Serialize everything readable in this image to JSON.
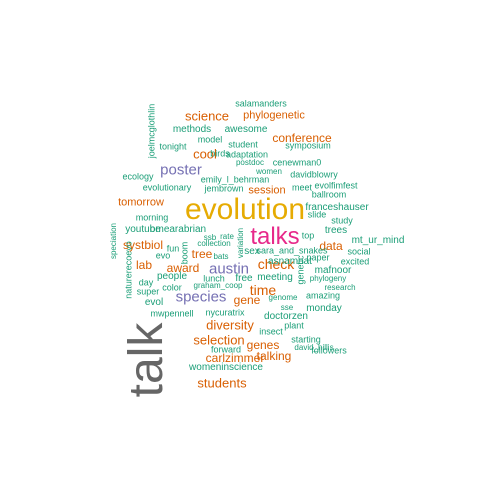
{
  "wordcloud": {
    "colors": {
      "gray": "#666666",
      "orange": "#D95F02",
      "teal": "#1B9E77",
      "purple": "#7570B3",
      "magenta": "#E7298A",
      "gold": "#E6AB02"
    },
    "words": [
      "talk",
      "evolution",
      "talks",
      "austin",
      "species",
      "poster",
      "time",
      "check",
      "science",
      "conference",
      "cool",
      "session",
      "gene",
      "selection",
      "diversity",
      "genes",
      "talking",
      "students",
      "data",
      "award",
      "tree",
      "systbiol",
      "tomorrow",
      "phylogenetic",
      "carlzimmer",
      "lab",
      "salamanders",
      "awesome",
      "methods",
      "model",
      "student",
      "symposium",
      "tonight",
      "birds",
      "adaptation",
      "cenewman0",
      "davidblowry",
      "emily_l_behrman",
      "ecology",
      "evolutionary",
      "jembrown",
      "meet",
      "evolfimfest",
      "ballroom",
      "franceshauser",
      "trees",
      "mt_ur_mind",
      "morning",
      "slide",
      "study",
      "omearabrian",
      "youtube",
      "ssb",
      "rate",
      "collection",
      "variation",
      "top",
      "social",
      "excited",
      "sara_and_snakes",
      "day",
      "people",
      "lunch",
      "free",
      "meeting",
      "sex",
      "asnamnat",
      "mafnoor",
      "research",
      "phylogeny",
      "amazing",
      "monday",
      "genome",
      "sse",
      "evol",
      "super",
      "color",
      "graham_coop",
      "boom",
      "fun",
      "evo",
      "bats",
      "nycuratrix",
      "doctorzen",
      "insect",
      "plant",
      "followers",
      "starting",
      "david_hillis",
      "forward",
      "womeninscience",
      "mwpennell",
      "speciation",
      "naturerecoevo",
      "joelmcglothlin",
      "postdoc",
      "women",
      "genetic",
      "paper"
    ]
  }
}
